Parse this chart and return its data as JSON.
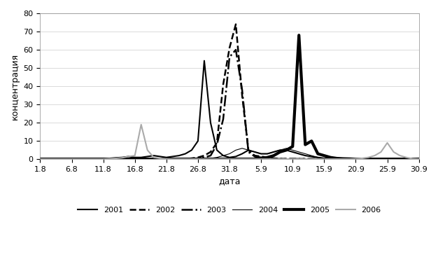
{
  "xlabel": "дата",
  "ylabel": "концентрация",
  "ylim": [
    0,
    80
  ],
  "yticks": [
    0,
    10,
    20,
    30,
    40,
    50,
    60,
    70,
    80
  ],
  "xtick_labels": [
    "1.8",
    "6.8",
    "11.8",
    "16.8",
    "21.8",
    "26.8",
    "31.8",
    "5.9",
    "10.9",
    "15.9",
    "20.9",
    "25.9",
    "30.9"
  ],
  "xtick_positions": [
    0,
    1,
    2,
    3,
    4,
    5,
    6,
    7,
    8,
    9,
    10,
    11,
    12
  ],
  "series": {
    "2001": {
      "x": [
        0.0,
        0.2,
        0.4,
        0.6,
        0.8,
        1.0,
        1.2,
        1.4,
        1.6,
        1.8,
        2.0,
        2.2,
        2.4,
        2.6,
        2.8,
        3.0,
        3.2,
        3.4,
        3.6,
        3.8,
        4.0,
        4.2,
        4.4,
        4.6,
        4.8,
        5.0,
        5.2,
        5.4,
        5.6,
        5.8,
        6.0,
        6.2,
        6.4,
        6.6,
        6.8,
        7.0,
        7.2,
        7.4,
        7.6,
        7.8,
        8.0,
        8.2,
        8.4,
        8.6,
        8.8,
        9.0,
        9.2,
        9.4,
        9.6,
        9.8,
        10.0,
        10.2,
        10.4,
        10.6,
        10.8,
        11.0,
        11.2,
        11.4,
        11.6,
        11.8,
        12.0
      ],
      "y": [
        0.1,
        0.1,
        0.1,
        0.1,
        0.2,
        0.2,
        0.1,
        0.1,
        0.2,
        0.3,
        0.3,
        0.5,
        0.8,
        1.0,
        1.5,
        1.0,
        1.0,
        1.5,
        2.0,
        1.5,
        1.0,
        1.5,
        2.0,
        3.0,
        5.0,
        10.0,
        54.0,
        20.0,
        5.0,
        2.0,
        1.0,
        1.5,
        3.0,
        5.0,
        4.0,
        3.0,
        3.0,
        4.0,
        5.0,
        5.0,
        4.0,
        3.0,
        2.0,
        1.5,
        1.0,
        0.5,
        0.5,
        0.3,
        0.3,
        0.3,
        0.2,
        0.2,
        0.2,
        0.2,
        0.2,
        0.2,
        0.2,
        0.2,
        0.2,
        0.1,
        0.1
      ],
      "color": "#000000",
      "linestyle": "solid",
      "linewidth": 1.5
    },
    "2002": {
      "x": [
        0.0,
        0.2,
        0.4,
        0.6,
        0.8,
        1.0,
        1.2,
        1.4,
        1.6,
        1.8,
        2.0,
        2.2,
        2.4,
        2.6,
        2.8,
        3.0,
        3.2,
        3.4,
        3.6,
        3.8,
        4.0,
        4.2,
        4.4,
        4.6,
        4.8,
        5.0,
        5.2,
        5.4,
        5.6,
        5.8,
        6.0,
        6.2,
        6.4,
        6.6,
        6.8,
        7.0,
        7.2,
        7.4,
        7.6,
        7.8,
        8.0,
        8.2,
        8.4,
        8.6,
        8.8,
        9.0,
        9.2,
        9.4,
        9.6,
        9.8,
        10.0,
        10.2,
        10.4,
        10.6,
        10.8,
        11.0,
        11.2,
        11.4,
        11.6,
        11.8,
        12.0
      ],
      "y": [
        0.1,
        0.1,
        0.1,
        0.1,
        0.1,
        0.1,
        0.1,
        0.1,
        0.1,
        0.1,
        0.1,
        0.1,
        0.1,
        0.1,
        0.1,
        0.1,
        0.1,
        0.1,
        0.1,
        0.1,
        0.1,
        0.1,
        0.1,
        0.1,
        0.5,
        1.0,
        2.0,
        4.0,
        9.0,
        41.0,
        61.0,
        74.0,
        35.0,
        5.0,
        2.0,
        1.5,
        1.0,
        0.5,
        0.3,
        0.2,
        0.2,
        0.2,
        0.2,
        0.2,
        0.2,
        0.2,
        0.2,
        0.2,
        0.2,
        0.2,
        0.1,
        0.1,
        0.1,
        0.1,
        0.1,
        0.1,
        0.1,
        0.1,
        0.1,
        0.1,
        0.1
      ],
      "color": "#000000",
      "linestyle": "dashed",
      "linewidth": 1.8
    },
    "2003": {
      "x": [
        0.0,
        0.2,
        0.4,
        0.6,
        0.8,
        1.0,
        1.2,
        1.4,
        1.6,
        1.8,
        2.0,
        2.2,
        2.4,
        2.6,
        2.8,
        3.0,
        3.2,
        3.4,
        3.6,
        3.8,
        4.0,
        4.2,
        4.4,
        4.6,
        4.8,
        5.0,
        5.2,
        5.4,
        5.6,
        5.8,
        6.0,
        6.2,
        6.4,
        6.6,
        6.8,
        7.0,
        7.2,
        7.4,
        7.6,
        7.8,
        8.0,
        8.2,
        8.4,
        8.6,
        8.8,
        9.0,
        9.2,
        9.4,
        9.6,
        9.8,
        10.0,
        10.2,
        10.4,
        10.6,
        10.8,
        11.0,
        11.2,
        11.4,
        11.6,
        11.8,
        12.0
      ],
      "y": [
        0.1,
        0.1,
        0.1,
        0.1,
        0.1,
        0.1,
        0.1,
        0.1,
        0.1,
        0.1,
        0.1,
        0.1,
        0.1,
        0.1,
        0.1,
        0.1,
        0.1,
        0.1,
        0.1,
        0.1,
        0.1,
        0.1,
        0.1,
        0.1,
        0.3,
        0.5,
        1.0,
        2.0,
        8.0,
        22.0,
        56.0,
        60.0,
        38.0,
        4.0,
        1.5,
        1.0,
        0.5,
        0.3,
        0.2,
        0.2,
        0.2,
        0.2,
        0.2,
        0.2,
        0.2,
        0.2,
        0.2,
        0.2,
        0.2,
        0.1,
        0.1,
        0.1,
        0.1,
        0.1,
        0.1,
        0.1,
        0.1,
        0.1,
        0.1,
        0.1,
        0.1
      ],
      "color": "#000000",
      "linestyle": "dashdot",
      "linewidth": 1.8
    },
    "2004": {
      "x": [
        0.0,
        0.2,
        0.4,
        0.6,
        0.8,
        1.0,
        1.2,
        1.4,
        1.6,
        1.8,
        2.0,
        2.2,
        2.4,
        2.6,
        2.8,
        3.0,
        3.2,
        3.4,
        3.6,
        3.8,
        4.0,
        4.2,
        4.4,
        4.6,
        4.8,
        5.0,
        5.2,
        5.4,
        5.6,
        5.8,
        6.0,
        6.2,
        6.4,
        6.6,
        6.8,
        7.0,
        7.2,
        7.4,
        7.6,
        7.8,
        8.0,
        8.2,
        8.4,
        8.6,
        8.8,
        9.0,
        9.2,
        9.4,
        9.6,
        9.8,
        10.0,
        10.2,
        10.4,
        10.6,
        10.8,
        11.0,
        11.2,
        11.4,
        11.6,
        11.8,
        12.0
      ],
      "y": [
        0.1,
        0.1,
        0.1,
        0.1,
        0.1,
        0.1,
        0.1,
        0.1,
        0.1,
        0.1,
        0.1,
        0.1,
        0.1,
        0.1,
        0.1,
        0.1,
        0.1,
        0.1,
        0.1,
        0.1,
        0.1,
        0.1,
        0.1,
        0.1,
        0.1,
        0.1,
        0.3,
        0.5,
        1.0,
        2.0,
        3.0,
        5.0,
        6.0,
        5.0,
        4.0,
        3.0,
        3.0,
        4.0,
        5.0,
        6.0,
        5.0,
        4.0,
        3.0,
        2.0,
        1.0,
        0.5,
        0.3,
        0.2,
        0.1,
        0.1,
        0.1,
        0.1,
        0.1,
        0.1,
        0.1,
        0.1,
        0.1,
        0.1,
        0.1,
        0.1,
        0.1
      ],
      "color": "#000000",
      "linestyle": "solid",
      "linewidth": 0.8
    },
    "2005": {
      "x": [
        0.0,
        0.2,
        0.4,
        0.6,
        0.8,
        1.0,
        1.2,
        1.4,
        1.6,
        1.8,
        2.0,
        2.2,
        2.4,
        2.6,
        2.8,
        3.0,
        3.2,
        3.4,
        3.6,
        3.8,
        4.0,
        4.2,
        4.4,
        4.6,
        4.8,
        5.0,
        5.2,
        5.4,
        5.6,
        5.8,
        6.0,
        6.2,
        6.4,
        6.6,
        6.8,
        7.0,
        7.2,
        7.4,
        7.6,
        7.8,
        8.0,
        8.2,
        8.4,
        8.6,
        8.8,
        9.0,
        9.2,
        9.4,
        9.6,
        9.8,
        10.0,
        10.2,
        10.4,
        10.6,
        10.8,
        11.0,
        11.2,
        11.4,
        11.6,
        11.8,
        12.0
      ],
      "y": [
        0.1,
        0.1,
        0.1,
        0.1,
        0.1,
        0.1,
        0.1,
        0.1,
        0.1,
        0.1,
        0.1,
        0.1,
        0.1,
        0.1,
        0.1,
        0.1,
        0.1,
        0.1,
        0.1,
        0.1,
        0.1,
        0.1,
        0.1,
        0.1,
        0.1,
        0.1,
        0.1,
        0.1,
        0.1,
        0.1,
        0.1,
        0.1,
        0.1,
        0.1,
        0.1,
        0.5,
        1.0,
        2.0,
        4.0,
        5.0,
        7.0,
        68.0,
        8.0,
        10.0,
        3.0,
        2.0,
        1.0,
        0.5,
        0.3,
        0.2,
        0.1,
        0.1,
        0.1,
        0.1,
        0.1,
        0.1,
        0.1,
        0.1,
        0.1,
        0.1,
        0.1
      ],
      "color": "#000000",
      "linestyle": "solid",
      "linewidth": 3.0
    },
    "2006": {
      "x": [
        0.0,
        0.2,
        0.4,
        0.6,
        0.8,
        1.0,
        1.2,
        1.4,
        1.6,
        1.8,
        2.0,
        2.2,
        2.4,
        2.6,
        2.8,
        3.0,
        3.2,
        3.4,
        3.6,
        3.8,
        4.0,
        4.2,
        4.4,
        4.6,
        4.8,
        5.0,
        5.2,
        5.4,
        5.6,
        5.8,
        6.0,
        6.2,
        6.4,
        6.6,
        6.8,
        7.0,
        7.2,
        7.4,
        7.6,
        7.8,
        8.0,
        8.2,
        8.4,
        8.6,
        8.8,
        9.0,
        9.2,
        9.4,
        9.6,
        9.8,
        10.0,
        10.2,
        10.4,
        10.6,
        10.8,
        11.0,
        11.2,
        11.4,
        11.6,
        11.8,
        12.0
      ],
      "y": [
        0.1,
        0.1,
        0.1,
        0.1,
        0.1,
        0.1,
        0.1,
        0.1,
        0.1,
        0.1,
        0.1,
        0.3,
        0.5,
        0.8,
        1.5,
        2.0,
        19.0,
        5.0,
        1.0,
        0.5,
        0.2,
        0.1,
        0.1,
        0.1,
        0.1,
        0.1,
        0.1,
        0.1,
        0.1,
        0.1,
        0.1,
        0.1,
        0.1,
        0.1,
        0.1,
        0.1,
        0.1,
        0.1,
        0.1,
        0.1,
        0.1,
        0.1,
        0.1,
        0.1,
        0.1,
        0.1,
        0.1,
        0.1,
        0.1,
        0.1,
        0.3,
        0.5,
        1.0,
        2.0,
        4.0,
        9.0,
        4.0,
        2.0,
        1.0,
        0.3,
        0.1
      ],
      "color": "#aaaaaa",
      "linestyle": "solid",
      "linewidth": 1.5
    }
  },
  "legend": {
    "2001": {
      "color": "#000000",
      "linestyle": "solid",
      "linewidth": 1.5
    },
    "2002": {
      "color": "#000000",
      "linestyle": "dashed",
      "linewidth": 1.8
    },
    "2003": {
      "color": "#000000",
      "linestyle": "dashdot",
      "linewidth": 1.8
    },
    "2004": {
      "color": "#000000",
      "linestyle": "solid",
      "linewidth": 0.8
    },
    "2005": {
      "color": "#000000",
      "linestyle": "solid",
      "linewidth": 3.0
    },
    "2006": {
      "color": "#aaaaaa",
      "linestyle": "solid",
      "linewidth": 1.5
    }
  },
  "background_color": "#ffffff",
  "grid_color": "#cccccc"
}
